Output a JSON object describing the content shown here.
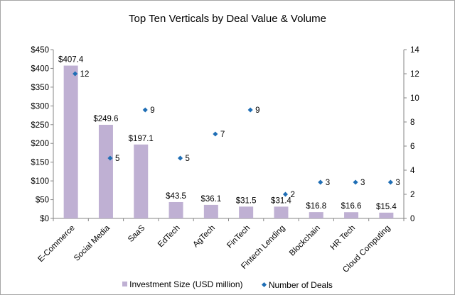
{
  "chart_data": {
    "type": "bar",
    "title": "Top Ten Verticals by Deal Value & Volume",
    "categories": [
      "E-Commerce",
      "Social Media",
      "SaaS",
      "EdTech",
      "AgTech",
      "FinTech",
      "Fintech Lending",
      "Blockchain",
      "HR Tech",
      "Cloud Computing"
    ],
    "series": [
      {
        "name": "Investment Size (USD million)",
        "type": "bar",
        "axis": "left",
        "color": "#BFB0D3",
        "values": [
          407.4,
          249.6,
          197.1,
          43.5,
          36.1,
          31.5,
          31.4,
          16.8,
          16.6,
          15.4
        ],
        "labels": [
          "$407.4",
          "$249.6",
          "$197.1",
          "$43.5",
          "$36.1",
          "$31.5",
          "$31.4",
          "$16.8",
          "$16.6",
          "$15.4"
        ]
      },
      {
        "name": "Number of Deals",
        "type": "scatter",
        "axis": "right",
        "color": "#1F6EB5",
        "values": [
          12,
          5,
          9,
          5,
          7,
          9,
          2,
          3,
          3,
          3
        ],
        "labels": [
          "12",
          "5",
          "9",
          "5",
          "7",
          "9",
          "2",
          "3",
          "3",
          "3"
        ]
      }
    ],
    "y_left": {
      "ylim": [
        0,
        450
      ],
      "ticks": [
        0,
        50,
        100,
        150,
        200,
        250,
        300,
        350,
        400,
        450
      ],
      "tick_labels": [
        "$0",
        "$50",
        "$100",
        "$150",
        "$200",
        "$250",
        "$300",
        "$350",
        "$400",
        "$450"
      ]
    },
    "y_right": {
      "ylim": [
        0,
        14
      ],
      "ticks": [
        0,
        2,
        4,
        6,
        8,
        10,
        12,
        14
      ],
      "tick_labels": [
        "0",
        "2",
        "4",
        "6",
        "8",
        "10",
        "12",
        "14"
      ]
    },
    "xlabel": "",
    "grid": false,
    "legend_position": "bottom"
  }
}
